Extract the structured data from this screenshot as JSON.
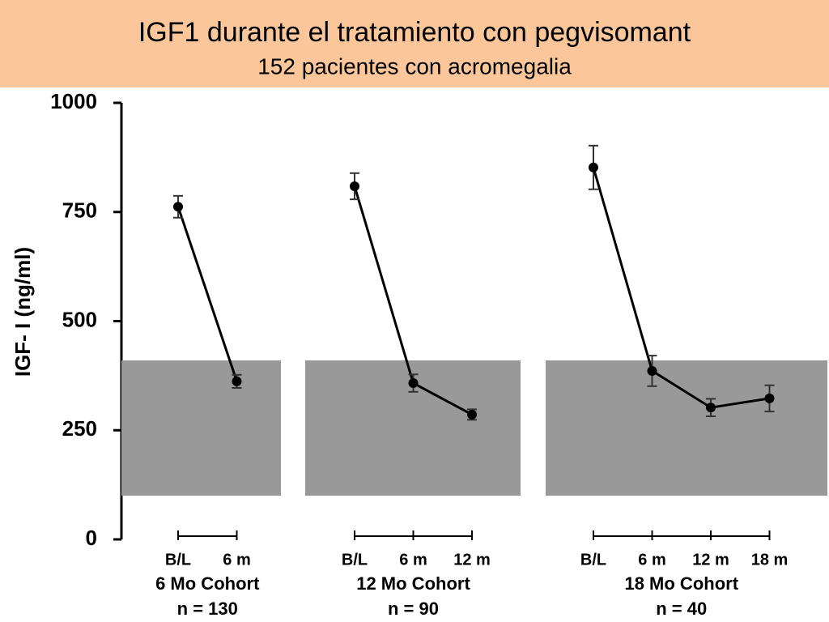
{
  "chart_data": {
    "type": "line",
    "title": "IGF1 durante el tratamiento con pegvisomant",
    "subtitle": "152 pacientes con acromegalia",
    "ylabel": "IGF- I (ng/ml)",
    "ylim": [
      0,
      1000
    ],
    "yticks": [
      0,
      250,
      500,
      750,
      1000
    ],
    "normal_range": [
      100,
      410
    ],
    "band_color": "#999999",
    "color": "#000000",
    "panels": [
      {
        "name": "6 Mo Cohort",
        "n": "n = 130",
        "categories": [
          "B/L",
          "6 m"
        ],
        "values": [
          762,
          362
        ],
        "errors": [
          25,
          15
        ]
      },
      {
        "name": "12 Mo Cohort",
        "n": "n = 90",
        "categories": [
          "B/L",
          "6 m",
          "12 m"
        ],
        "values": [
          809,
          358,
          286
        ],
        "errors": [
          30,
          20,
          12
        ]
      },
      {
        "name": "18 Mo Cohort",
        "n": "n = 40",
        "categories": [
          "B/L",
          "6 m",
          "12 m",
          "18 m"
        ],
        "values": [
          852,
          386,
          302,
          323
        ],
        "errors": [
          50,
          35,
          20,
          30
        ]
      }
    ]
  }
}
